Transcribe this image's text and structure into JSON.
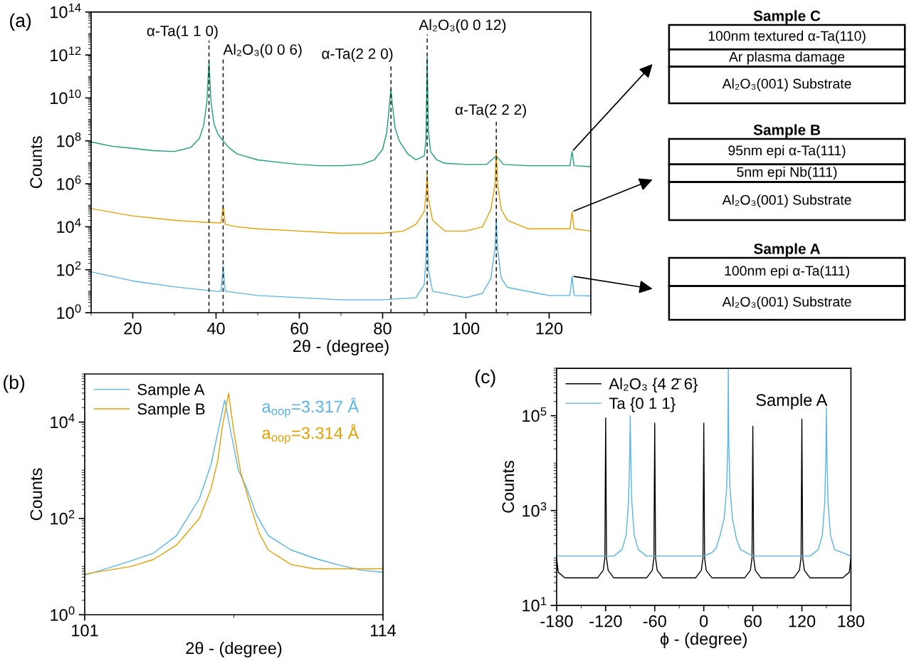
{
  "chart_data": [
    {
      "type": "line",
      "xlabel": "2θ - (degree)",
      "ylabel": "Counts",
      "log": "y",
      "xlim": [
        10,
        130
      ],
      "xticks": [
        20,
        40,
        60,
        80,
        100,
        120
      ],
      "ylim": [
        1,
        100000000000000.0
      ],
      "yticks": [
        {
          "value": 1,
          "label": "10$^{0}$"
        },
        {
          "value": 100,
          "label": "10$^{2}$"
        },
        {
          "value": 10000,
          "label": "10$^{4}$"
        },
        {
          "value": 1000000.0,
          "label": "10$^{6}$"
        },
        {
          "value": 100000000.0,
          "label": "10$^{8}$"
        },
        {
          "value": 10000000000.0,
          "label": "10$^{10}$"
        },
        {
          "value": 1000000000000.0,
          "label": "10$^{12}$"
        },
        {
          "value": 100000000000000.0,
          "label": "10$^{14}$"
        }
      ],
      "series": [
        {
          "color": "#17a07a",
          "x": [
            10,
            15,
            20,
            25,
            30,
            34,
            36,
            37,
            37.8,
            38.3,
            38.8,
            39.5,
            40.5,
            41.7,
            43,
            45,
            50,
            55,
            60,
            65,
            70,
            75,
            78,
            80,
            81,
            81.6,
            82,
            82.4,
            83,
            84,
            86,
            88,
            90,
            90.4,
            90.7,
            91,
            91.5,
            93,
            95,
            100,
            105,
            107.3,
            109,
            115,
            120,
            125,
            125.5,
            126,
            130
          ],
          "values": [
            89000000.0,
            56000000.0,
            45000000.0,
            35000000.0,
            32000000.0,
            50000000.0,
            130000000.0,
            500000000.0,
            6300000000.0,
            500000000000.0,
            6300000000.0,
            630000000.0,
            200000000.0,
            100000000.0,
            50000000.0,
            25000000.0,
            13000000.0,
            10000000.0,
            8000000.0,
            7000000.0,
            7000000.0,
            8000000.0,
            13000000.0,
            40000000.0,
            250000000.0,
            4000000000.0,
            25000000000.0,
            4000000000.0,
            400000000.0,
            100000000.0,
            25000000.0,
            13000000.0,
            20000000.0,
            100000000.0,
            800000000000.0,
            320000000.0,
            32000000.0,
            13000000.0,
            9000000.0,
            8000000.0,
            8000000.0,
            20000000.0,
            8000000.0,
            7000000.0,
            7000000.0,
            7000000.0,
            32000000.0,
            7000000.0,
            6300000.0
          ]
        },
        {
          "color": "#e69f00",
          "x": [
            10,
            20,
            30,
            38,
            41.2,
            41.7,
            42.2,
            45,
            50,
            60,
            70,
            80,
            85,
            88,
            90,
            90.4,
            90.7,
            91,
            92,
            95,
            100,
            104,
            106,
            107,
            107.3,
            107.6,
            108.5,
            110,
            115,
            120,
            125,
            125.5,
            126,
            130
          ],
          "values": [
            70000.0,
            32000.0,
            20000.0,
            16000.0,
            15000.0,
            100000.0,
            13000.0,
            10000.0,
            8000.0,
            6300.0,
            5000.0,
            5000.0,
            6300.0,
            13000.0,
            50000.0,
            300000.0,
            3000000.0,
            200000.0,
            20000.0,
            6300.0,
            6300.0,
            10000.0,
            63000.0,
            1000000.0,
            40000000.0,
            1000000.0,
            63000.0,
            20000.0,
            8000.0,
            8000.0,
            8000.0,
            50000.0,
            8000.0,
            6300.0
          ]
        },
        {
          "color": "#56b4e9",
          "x": [
            10,
            20,
            30,
            40,
            41.2,
            41.7,
            42.2,
            50,
            60,
            70,
            80,
            88,
            90,
            90.4,
            90.7,
            91,
            92,
            100,
            104,
            106,
            107,
            107.3,
            107.6,
            108.5,
            110,
            120,
            125,
            125.5,
            126,
            130
          ],
          "values": [
            80,
            30,
            16,
            10,
            10,
            150,
            10,
            6.3,
            5,
            4,
            4,
            5,
            20,
            300,
            30000.0,
            100,
            10,
            5,
            8,
            40,
            1000,
            25000.0,
            1000,
            40,
            15,
            6.3,
            6.3,
            50,
            6.3,
            6
          ]
        }
      ],
      "ref_lines": [
        {
          "axis": "x",
          "value": 38.3,
          "label": "α-Ta(1 1 0)",
          "color": "#000000",
          "line_style": "dashed"
        },
        {
          "axis": "x",
          "value": 41.7,
          "label": "Al₂O₃(0 0 6)",
          "color": "#000000",
          "line_style": "dashed"
        },
        {
          "axis": "x",
          "value": 82,
          "label": "α-Ta(2 2 0)",
          "color": "#000000",
          "line_style": "dashed"
        },
        {
          "axis": "x",
          "value": 90.7,
          "label": "Al₂O₃(0 0 12)",
          "color": "#000000",
          "line_style": "dashed"
        },
        {
          "axis": "x",
          "value": 107.3,
          "label": "α-Ta(2 2 2)",
          "color": "#000000",
          "line_style": "dashed"
        }
      ],
      "annotations": [
        "(a)"
      ]
    },
    {
      "type": "other",
      "title": "Sample C",
      "annotations": [
        "100nm textured α-Ta(110)",
        "Ar plasma damage",
        "Al₂O₃(001) Substrate"
      ]
    },
    {
      "type": "other",
      "title": "Sample B",
      "annotations": [
        "95nm epi α-Ta(111)",
        "5nm epi Nb(111)",
        "Al₂O₃(001) Substrate"
      ]
    },
    {
      "type": "other",
      "title": "Sample A",
      "annotations": [
        "100nm epi α-Ta(111)",
        "Al₂O₃(001) Substrate"
      ]
    },
    {
      "type": "line",
      "xlabel": "2θ - (degree)",
      "ylabel": "Counts",
      "log": "y",
      "xlim": [
        101,
        114
      ],
      "xticks": [
        101,
        114
      ],
      "ylim": [
        1,
        100000.0
      ],
      "yticks": [
        {
          "value": 1,
          "label": "10$^{0}$"
        },
        {
          "value": 100,
          "label": "10$^{2}$"
        },
        {
          "value": 10000,
          "label": "10$^{4}$"
        }
      ],
      "legend": "top left",
      "series": [
        {
          "name": "Sample A",
          "color": "#56b4e9",
          "x": [
            101,
            103,
            104,
            105,
            106,
            106.5,
            106.8,
            107.1,
            107.4,
            107.7,
            108,
            108.5,
            109,
            110,
            111,
            112,
            113,
            114
          ],
          "values": [
            6.6,
            13,
            19,
            44,
            260,
            1300,
            6000,
            29000,
            5200,
            1000,
            500,
            115,
            44,
            22,
            15,
            11,
            8.5,
            7.6
          ]
        },
        {
          "name": "Sample B",
          "color": "#e69f00",
          "x": [
            101,
            103,
            104,
            105,
            106,
            106.5,
            106.8,
            107,
            107.27,
            107.5,
            107.8,
            108.2,
            108.6,
            109,
            110,
            111,
            112,
            113,
            114
          ],
          "values": [
            7,
            10,
            14,
            28,
            100,
            400,
            1600,
            8000,
            40000,
            6300,
            900,
            200,
            50,
            22,
            11,
            9,
            9,
            9,
            9
          ]
        }
      ],
      "annotations": [
        "(b)",
        "a$_{oop}$=3.317 Å",
        "a$_{oop}$=3.314 Å"
      ]
    },
    {
      "type": "line",
      "xlabel": "ϕ - (degree)",
      "ylabel": "Counts",
      "log": "y",
      "xlim": [
        -180,
        180
      ],
      "xticks": [
        -180,
        -120,
        -60,
        0,
        60,
        120,
        180
      ],
      "ylim": [
        10,
        1000000.0
      ],
      "yticks": [
        {
          "value": 10,
          "label": "10$^{1}$"
        },
        {
          "value": 1000,
          "label": "10$^{3}$"
        },
        {
          "value": 100000,
          "label": "10$^{5}$"
        }
      ],
      "legend": "top left",
      "series": [
        {
          "name": "Al₂O₃ {4 2̄ 6}",
          "color": "#000000",
          "x": [
            -180,
            -178,
            -170,
            -130,
            -123,
            -121,
            -120,
            -119,
            -117,
            -110,
            -70,
            -63,
            -61,
            -60,
            -59,
            -57,
            -50,
            -10,
            -3,
            -1,
            0,
            1,
            3,
            10,
            50,
            57,
            59,
            60,
            61,
            63,
            70,
            110,
            117,
            119,
            120,
            121,
            123,
            130,
            170,
            178,
            180
          ],
          "values": [
            100,
            50,
            38,
            38,
            55,
            100,
            90000.0,
            100,
            55,
            38,
            38,
            55,
            100,
            70000.0,
            100,
            55,
            38,
            38,
            55,
            100,
            70000.0,
            100,
            55,
            38,
            38,
            55,
            100,
            60000.0,
            100,
            55,
            38,
            38,
            55,
            100,
            85000.0,
            100,
            55,
            38,
            38,
            50,
            100
          ]
        },
        {
          "name": "Ta {0 1 1}",
          "color": "#56b4e9",
          "x": [
            -180,
            -110,
            -100,
            -95,
            -92,
            -90.5,
            -90,
            -89.5,
            -88,
            -85,
            -80,
            -70,
            0,
            10,
            15,
            20,
            25,
            28,
            29.5,
            30,
            30.5,
            32,
            35,
            40,
            45,
            60,
            130,
            140,
            145,
            148,
            149.5,
            150,
            150.5,
            152,
            155,
            160,
            180
          ],
          "values": [
            110,
            110,
            150,
            300,
            1500,
            20000.0,
            100000.0,
            20000.0,
            1500,
            300,
            150,
            110,
            110,
            130,
            160,
            300,
            700,
            3000,
            30000.0,
            1000000.0,
            30000.0,
            3000,
            700,
            250,
            150,
            110,
            110,
            150,
            300,
            1500,
            20000.0,
            150000.0,
            20000.0,
            1500,
            300,
            150,
            110
          ]
        }
      ],
      "annotations": [
        "(c)",
        "Sample A"
      ]
    }
  ]
}
